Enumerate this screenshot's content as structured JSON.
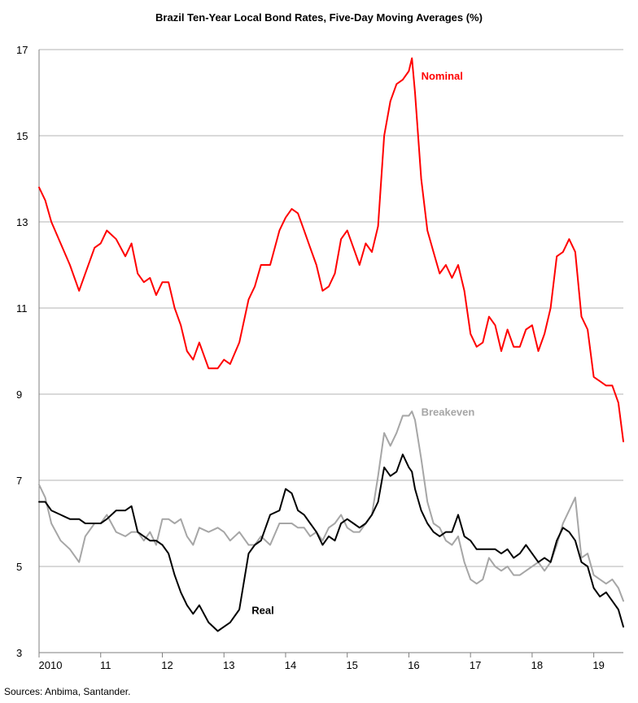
{
  "chart_data": {
    "type": "line",
    "title": "Brazil Ten-Year Local Bond Rates, Five-Day Moving Averages (%)",
    "xlabel": "",
    "ylabel": "",
    "x_tick_labels": [
      "2010",
      "11",
      "12",
      "13",
      "14",
      "15",
      "16",
      "17",
      "18",
      "19"
    ],
    "xlim": [
      2010.0,
      2019.48
    ],
    "ylim": [
      3,
      17
    ],
    "y_ticks": [
      3,
      5,
      7,
      9,
      11,
      13,
      15,
      17
    ],
    "grid": "horizontal",
    "x_points": [
      2010.0,
      2010.1,
      2010.2,
      2010.35,
      2010.5,
      2010.65,
      2010.75,
      2010.9,
      2011.0,
      2011.1,
      2011.25,
      2011.4,
      2011.5,
      2011.6,
      2011.7,
      2011.8,
      2011.9,
      2012.0,
      2012.1,
      2012.2,
      2012.3,
      2012.4,
      2012.5,
      2012.6,
      2012.75,
      2012.9,
      2013.0,
      2013.1,
      2013.25,
      2013.4,
      2013.5,
      2013.6,
      2013.75,
      2013.9,
      2014.0,
      2014.1,
      2014.2,
      2014.3,
      2014.4,
      2014.5,
      2014.6,
      2014.7,
      2014.8,
      2014.9,
      2015.0,
      2015.1,
      2015.2,
      2015.3,
      2015.4,
      2015.5,
      2015.6,
      2015.7,
      2015.8,
      2015.9,
      2016.0,
      2016.05,
      2016.1,
      2016.2,
      2016.3,
      2016.4,
      2016.5,
      2016.6,
      2016.7,
      2016.8,
      2016.9,
      2017.0,
      2017.1,
      2017.2,
      2017.3,
      2017.4,
      2017.5,
      2017.6,
      2017.7,
      2017.8,
      2017.9,
      2018.0,
      2018.1,
      2018.2,
      2018.3,
      2018.4,
      2018.5,
      2018.6,
      2018.7,
      2018.8,
      2018.9,
      2019.0,
      2019.1,
      2019.2,
      2019.3,
      2019.4,
      2019.48
    ],
    "series": [
      {
        "name": "Nominal",
        "color": "#ff0000",
        "values": [
          13.8,
          13.5,
          13.0,
          12.5,
          12.0,
          11.4,
          11.8,
          12.4,
          12.5,
          12.8,
          12.6,
          12.2,
          12.5,
          11.8,
          11.6,
          11.7,
          11.3,
          11.6,
          11.6,
          11.0,
          10.6,
          10.0,
          9.8,
          10.2,
          9.6,
          9.6,
          9.8,
          9.7,
          10.2,
          11.2,
          11.5,
          12.0,
          12.0,
          12.8,
          13.1,
          13.3,
          13.2,
          12.8,
          12.4,
          12.0,
          11.4,
          11.5,
          11.8,
          12.6,
          12.8,
          12.4,
          12.0,
          12.5,
          12.3,
          12.9,
          15.0,
          15.8,
          16.2,
          16.3,
          16.5,
          16.8,
          16.0,
          14.0,
          12.8,
          12.3,
          11.8,
          12.0,
          11.7,
          12.0,
          11.4,
          10.4,
          10.1,
          10.2,
          10.8,
          10.6,
          10.0,
          10.5,
          10.1,
          10.1,
          10.5,
          10.6,
          10.0,
          10.4,
          11.0,
          12.2,
          12.3,
          12.6,
          12.3,
          10.8,
          10.5,
          9.4,
          9.3,
          9.2,
          9.2,
          8.8,
          7.9
        ]
      },
      {
        "name": "Breakeven",
        "color": "#a6a6a6",
        "values": [
          6.9,
          6.6,
          6.0,
          5.6,
          5.4,
          5.1,
          5.7,
          6.0,
          6.0,
          6.2,
          5.8,
          5.7,
          5.8,
          5.8,
          5.6,
          5.8,
          5.5,
          6.1,
          6.1,
          6.0,
          6.1,
          5.7,
          5.5,
          5.9,
          5.8,
          5.9,
          5.8,
          5.6,
          5.8,
          5.5,
          5.5,
          5.7,
          5.5,
          6.0,
          6.0,
          6.0,
          5.9,
          5.9,
          5.7,
          5.8,
          5.6,
          5.9,
          6.0,
          6.2,
          5.9,
          5.8,
          5.8,
          6.0,
          6.2,
          7.1,
          8.1,
          7.8,
          8.1,
          8.5,
          8.5,
          8.6,
          8.4,
          7.5,
          6.5,
          6.0,
          5.9,
          5.6,
          5.5,
          5.7,
          5.1,
          4.7,
          4.6,
          4.7,
          5.2,
          5.0,
          4.9,
          5.0,
          4.8,
          4.8,
          4.9,
          5.0,
          5.1,
          4.9,
          5.1,
          5.5,
          6.0,
          6.3,
          6.6,
          5.2,
          5.3,
          4.8,
          4.7,
          4.6,
          4.7,
          4.5,
          4.2
        ]
      },
      {
        "name": "Real",
        "color": "#000000",
        "values": [
          6.5,
          6.5,
          6.3,
          6.2,
          6.1,
          6.1,
          6.0,
          6.0,
          6.0,
          6.1,
          6.3,
          6.3,
          6.4,
          5.8,
          5.7,
          5.6,
          5.6,
          5.5,
          5.3,
          4.8,
          4.4,
          4.1,
          3.9,
          4.1,
          3.7,
          3.5,
          3.6,
          3.7,
          4.0,
          5.3,
          5.5,
          5.6,
          6.2,
          6.3,
          6.8,
          6.7,
          6.3,
          6.2,
          6.0,
          5.8,
          5.5,
          5.7,
          5.6,
          6.0,
          6.1,
          6.0,
          5.9,
          6.0,
          6.2,
          6.5,
          7.3,
          7.1,
          7.2,
          7.6,
          7.3,
          7.2,
          6.8,
          6.3,
          6.0,
          5.8,
          5.7,
          5.8,
          5.8,
          6.2,
          5.7,
          5.6,
          5.4,
          5.4,
          5.4,
          5.4,
          5.3,
          5.4,
          5.2,
          5.3,
          5.5,
          5.3,
          5.1,
          5.2,
          5.1,
          5.6,
          5.9,
          5.8,
          5.6,
          5.1,
          5.0,
          4.5,
          4.3,
          4.4,
          4.2,
          4.0,
          3.6
        ]
      }
    ]
  },
  "source": "Sources: Anbima, Santander."
}
